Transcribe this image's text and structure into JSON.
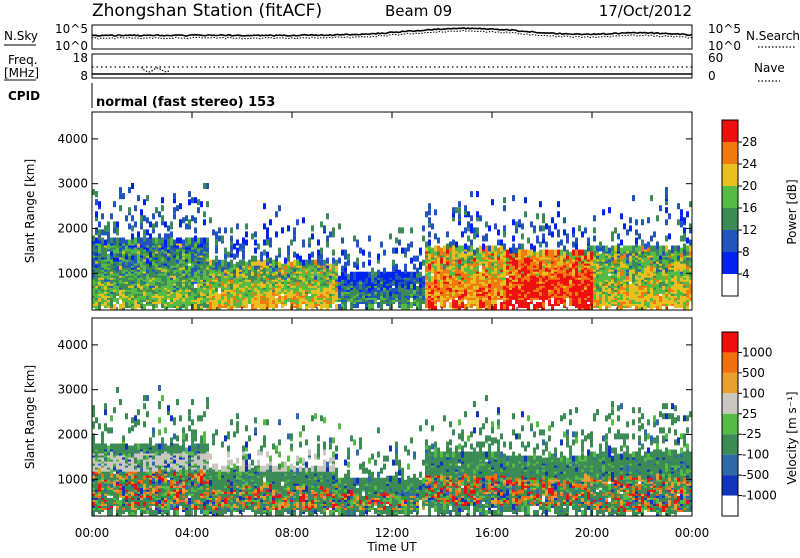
{
  "header": {
    "station": "Zhongshan Station (fitACF)",
    "beam": "Beam 09",
    "date": "17/Oct/2012"
  },
  "sky_panel": {
    "left_label": "N.Sky",
    "right_label": "N.Search",
    "ticks_left": [
      "10^5",
      "10^0"
    ],
    "ticks_right": [
      "10^5",
      "10^0"
    ]
  },
  "freq_panel": {
    "left_label_top": "Freq.",
    "left_label_bottom": "[MHz]",
    "right_label": "Nave",
    "ticks_left": [
      "18",
      "8"
    ],
    "ticks_right": [
      "60",
      "0"
    ]
  },
  "cpid": {
    "label": "CPID",
    "text": "normal (fast stereo) 153"
  },
  "chart_data": [
    {
      "type": "heatmap",
      "name": "power",
      "ylabel": "Slant Range [km]",
      "yticks": [
        "1000",
        "2000",
        "3000",
        "4000"
      ],
      "ylim": [
        180,
        4600
      ],
      "xlim_hours": [
        0,
        24
      ],
      "colorbar": {
        "label": "Power [dB]",
        "ticks": [
          "4",
          "8",
          "12",
          "16",
          "20",
          "24",
          "28"
        ],
        "colors": [
          "#0022ee",
          "#2255bb",
          "#3c8a55",
          "#55bb44",
          "#e8c020",
          "#f07a10",
          "#ee1010"
        ]
      },
      "echo_bands": [
        {
          "start_h": 0.0,
          "end_h": 4.6,
          "ranges_km": [
            [
              300,
              1700
            ]
          ],
          "level": 3
        },
        {
          "start_h": 4.6,
          "end_h": 9.8,
          "ranges_km": [
            [
              300,
              1200
            ]
          ],
          "level": 4
        },
        {
          "start_h": 9.8,
          "end_h": 13.3,
          "ranges_km": [
            [
              300,
              900
            ]
          ],
          "level": 2
        },
        {
          "start_h": 13.3,
          "end_h": 16.5,
          "ranges_km": [
            [
              400,
              1500
            ]
          ],
          "level": 5
        },
        {
          "start_h": 16.5,
          "end_h": 20.0,
          "ranges_km": [
            [
              400,
              1400
            ]
          ],
          "level": 6
        },
        {
          "start_h": 20.0,
          "end_h": 24.0,
          "ranges_km": [
            [
              250,
              1500
            ]
          ],
          "level": 4
        }
      ]
    },
    {
      "type": "heatmap",
      "name": "velocity",
      "ylabel": "Slant Range [km]",
      "yticks": [
        "1000",
        "2000",
        "3000",
        "4000"
      ],
      "ylim": [
        180,
        4600
      ],
      "xlim_hours": [
        0,
        24
      ],
      "xticks": [
        "00:00",
        "04:00",
        "08:00",
        "12:00",
        "16:00",
        "20:00",
        "00:00"
      ],
      "xlabel": "Time UT",
      "colorbar": {
        "label": "Velocity [m s⁻¹]",
        "ticks": [
          "1000",
          "500",
          "100",
          "25",
          "-25",
          "-100",
          "-500",
          "-1000"
        ],
        "colors": [
          "#1133bb",
          "#2e6aa8",
          "#3c8a55",
          "#55bb44",
          "#c8c8c0",
          "#e8a030",
          "#f07010",
          "#ee1010"
        ]
      }
    }
  ]
}
